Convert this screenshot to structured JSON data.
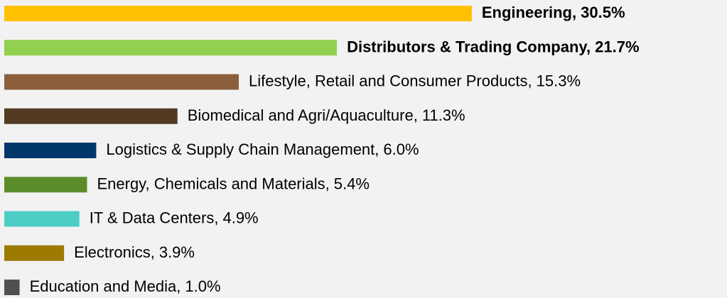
{
  "chart_data": {
    "type": "bar",
    "orientation": "horizontal",
    "categories": [
      "Engineering,",
      "Distributors & Trading Company,",
      "Lifestyle, Retail and Consumer Products,",
      "Biomedical and Agri/Aquaculture,",
      "Logistics & Supply Chain Management,",
      "Energy, Chemicals and Materials,",
      "IT & Data Centers,",
      "Electronics,",
      "Education and Media,"
    ],
    "values": [
      30.5,
      21.7,
      15.3,
      11.3,
      6.0,
      5.4,
      4.9,
      3.9,
      1.0
    ],
    "value_labels": [
      "30.5%",
      "21.7%",
      "15.3%",
      "11.3%",
      "6.0%",
      "5.4%",
      "4.9%",
      "3.9%",
      "1.0%"
    ],
    "colors": [
      "#ffc000",
      "#92d050",
      "#8b5e3c",
      "#533a22",
      "#00386b",
      "#5b8c2a",
      "#4ecdc4",
      "#9c7b00",
      "#505050"
    ]
  }
}
